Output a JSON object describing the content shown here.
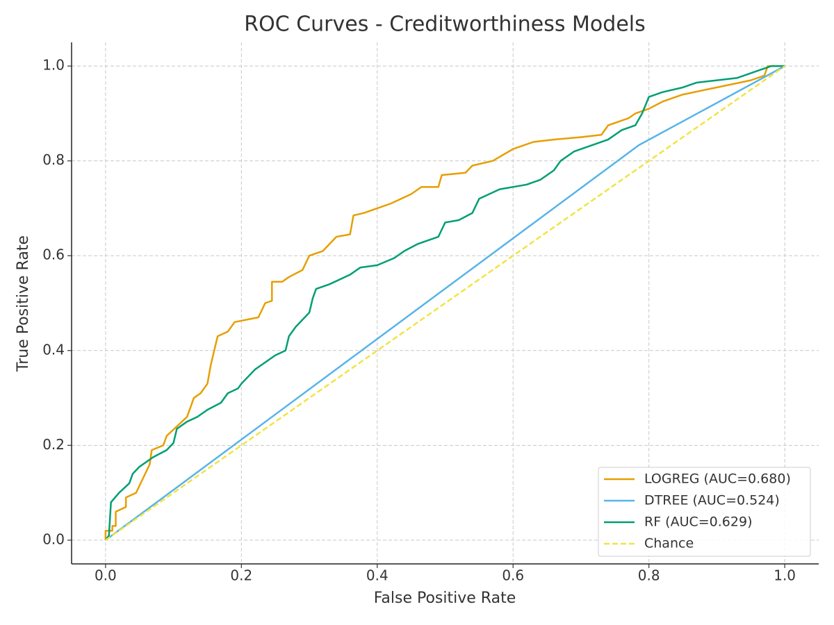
{
  "chart_data": {
    "type": "line",
    "title": "ROC Curves - Creditworthiness Models",
    "x_label": "False Positive Rate",
    "y_label": "True Positive Rate",
    "xlim": [
      -0.05,
      1.05
    ],
    "ylim": [
      -0.05,
      1.05
    ],
    "xticks": [
      {
        "value": 0,
        "label": "0.0"
      },
      0.2,
      0.4,
      0.6,
      0.8,
      {
        "value": 1,
        "label": "1.0"
      }
    ],
    "yticks": [
      {
        "value": 0,
        "label": "0.0"
      },
      0.2,
      0.4,
      0.6,
      0.8,
      {
        "value": 1,
        "label": "1.0"
      }
    ],
    "grid": true,
    "legend": "lower right",
    "series": [
      {
        "name": "LOGREG (AUC=0.680)",
        "color": "#e69f00",
        "style": "solid",
        "x": [
          0,
          0,
          0.01,
          0.01,
          0.015,
          0.015,
          0.03,
          0.03,
          0.045,
          0.055,
          0.065,
          0.068,
          0.085,
          0.09,
          0.105,
          0.12,
          0.13,
          0.14,
          0.15,
          0.155,
          0.165,
          0.18,
          0.19,
          0.225,
          0.235,
          0.245,
          0.245,
          0.26,
          0.27,
          0.29,
          0.3,
          0.32,
          0.34,
          0.36,
          0.365,
          0.38,
          0.4,
          0.42,
          0.45,
          0.465,
          0.49,
          0.495,
          0.53,
          0.54,
          0.57,
          0.6,
          0.63,
          0.66,
          0.7,
          0.73,
          0.74,
          0.77,
          0.78,
          0.8,
          0.82,
          0.85,
          0.9,
          0.95,
          0.97,
          0.975,
          1
        ],
        "values": [
          0,
          0.02,
          0.02,
          0.03,
          0.03,
          0.06,
          0.07,
          0.09,
          0.1,
          0.13,
          0.16,
          0.19,
          0.2,
          0.22,
          0.24,
          0.26,
          0.3,
          0.31,
          0.33,
          0.37,
          0.43,
          0.44,
          0.46,
          0.47,
          0.5,
          0.505,
          0.545,
          0.545,
          0.555,
          0.57,
          0.6,
          0.61,
          0.64,
          0.645,
          0.685,
          0.69,
          0.7,
          0.71,
          0.73,
          0.745,
          0.745,
          0.77,
          0.775,
          0.79,
          0.8,
          0.825,
          0.84,
          0.845,
          0.85,
          0.855,
          0.875,
          0.89,
          0.9,
          0.91,
          0.925,
          0.94,
          0.955,
          0.97,
          0.98,
          1,
          1
        ]
      },
      {
        "name": "DTREE (AUC=0.524)",
        "color": "#56b4e9",
        "style": "solid",
        "x": [
          0,
          0.785,
          1
        ],
        "values": [
          0,
          0.833,
          1
        ]
      },
      {
        "name": "RF (AUC=0.629)",
        "color": "#009e73",
        "style": "solid",
        "x": [
          0,
          0.005,
          0.008,
          0.02,
          0.035,
          0.04,
          0.05,
          0.07,
          0.09,
          0.1,
          0.105,
          0.12,
          0.135,
          0.15,
          0.17,
          0.18,
          0.195,
          0.2,
          0.22,
          0.235,
          0.25,
          0.265,
          0.27,
          0.28,
          0.3,
          0.305,
          0.31,
          0.33,
          0.36,
          0.375,
          0.4,
          0.425,
          0.44,
          0.46,
          0.49,
          0.5,
          0.52,
          0.54,
          0.55,
          0.58,
          0.62,
          0.64,
          0.66,
          0.67,
          0.69,
          0.72,
          0.74,
          0.76,
          0.78,
          0.79,
          0.8,
          0.82,
          0.85,
          0.87,
          0.9,
          0.93,
          0.96,
          0.98,
          1
        ],
        "values": [
          0,
          0.01,
          0.08,
          0.1,
          0.12,
          0.14,
          0.155,
          0.175,
          0.19,
          0.205,
          0.235,
          0.25,
          0.26,
          0.275,
          0.29,
          0.31,
          0.32,
          0.33,
          0.36,
          0.375,
          0.39,
          0.4,
          0.43,
          0.45,
          0.48,
          0.51,
          0.53,
          0.54,
          0.56,
          0.575,
          0.58,
          0.595,
          0.61,
          0.625,
          0.64,
          0.67,
          0.675,
          0.69,
          0.72,
          0.74,
          0.75,
          0.76,
          0.78,
          0.8,
          0.82,
          0.835,
          0.845,
          0.865,
          0.875,
          0.9,
          0.935,
          0.945,
          0.955,
          0.965,
          0.97,
          0.975,
          0.99,
          1,
          1
        ]
      },
      {
        "name": "Chance",
        "color": "#f0e442",
        "style": "dashed",
        "x": [
          0,
          1
        ],
        "values": [
          0,
          1
        ]
      }
    ]
  }
}
